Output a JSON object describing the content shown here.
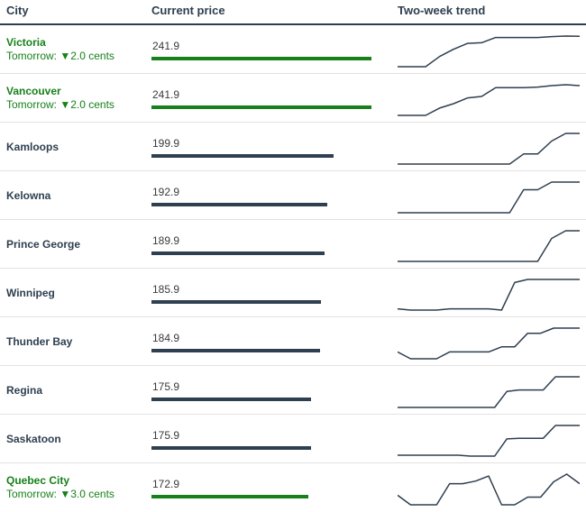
{
  "headers": {
    "city": "City",
    "price": "Current price",
    "trend": "Two-week trend"
  },
  "colors": {
    "highlight": "#17801a",
    "normal": "#2e3f4f",
    "line": "#2e3f4f"
  },
  "chart_data": {
    "type": "table",
    "columns": [
      "City",
      "Current price",
      "Two-week trend"
    ],
    "rows": [
      {
        "city": "Victoria",
        "note": "Tomorrow: ▼2.0 cents",
        "highlight": true,
        "price": 241.9,
        "trend": [
          0,
          0,
          0,
          0.35,
          0.6,
          0.8,
          0.82,
          1.0,
          1.0,
          1.0,
          1.0,
          1.03,
          1.05,
          1.04
        ]
      },
      {
        "city": "Vancouver",
        "note": "Tomorrow: ▼2.0 cents",
        "highlight": true,
        "price": 241.9,
        "trend": [
          0,
          0,
          0,
          0.25,
          0.4,
          0.6,
          0.65,
          0.95,
          0.95,
          0.95,
          0.97,
          1.02,
          1.05,
          1.02
        ]
      },
      {
        "city": "Kamloops",
        "note": "",
        "highlight": false,
        "price": 199.9,
        "trend": [
          0,
          0,
          0,
          0,
          0,
          0,
          0,
          0,
          0,
          0.33,
          0.33,
          0.75,
          1.0,
          1.0
        ]
      },
      {
        "city": "Kelowna",
        "note": "",
        "highlight": false,
        "price": 192.9,
        "trend": [
          0,
          0,
          0,
          0,
          0,
          0,
          0,
          0,
          0,
          0.75,
          0.75,
          1.0,
          1.0,
          1.0
        ]
      },
      {
        "city": "Prince George",
        "note": "",
        "highlight": false,
        "price": 189.9,
        "trend": [
          0,
          0,
          0,
          0,
          0,
          0,
          0,
          0,
          0,
          0,
          0,
          0.75,
          1.0,
          1.0
        ]
      },
      {
        "city": "Winnipeg",
        "note": "",
        "highlight": false,
        "price": 185.9,
        "trend": [
          0.04,
          0,
          0,
          0,
          0.04,
          0.04,
          0.04,
          0.04,
          0,
          0.9,
          1.0,
          1.0,
          1.0,
          1.0,
          1.0
        ]
      },
      {
        "city": "Thunder Bay",
        "note": "",
        "highlight": false,
        "price": 184.9,
        "trend": [
          0.2,
          0,
          0,
          0,
          0.2,
          0.2,
          0.2,
          0.2,
          0.35,
          0.35,
          0.75,
          0.75,
          0.9,
          0.9,
          0.9
        ]
      },
      {
        "city": "Regina",
        "note": "",
        "highlight": false,
        "price": 175.9,
        "trend": [
          0,
          0,
          0,
          0,
          0,
          0,
          0,
          0,
          0,
          0.52,
          0.57,
          0.57,
          0.57,
          1.0,
          1.0,
          1.0
        ]
      },
      {
        "city": "Saskatoon",
        "note": "",
        "highlight": false,
        "price": 175.9,
        "trend": [
          0,
          0,
          0,
          0,
          0,
          0,
          -0.03,
          -0.03,
          -0.03,
          0.55,
          0.57,
          0.57,
          0.57,
          1.0,
          1.0,
          1.0
        ]
      },
      {
        "city": "Quebec City",
        "note": "Tomorrow: ▼3.0 cents",
        "highlight": true,
        "price": 172.9,
        "trend": [
          0.25,
          0,
          0,
          0,
          0.55,
          0.55,
          0.62,
          0.75,
          0,
          0,
          0.2,
          0.2,
          0.6,
          0.8,
          0.55
        ]
      }
    ],
    "price_scale_max": 241.9
  }
}
